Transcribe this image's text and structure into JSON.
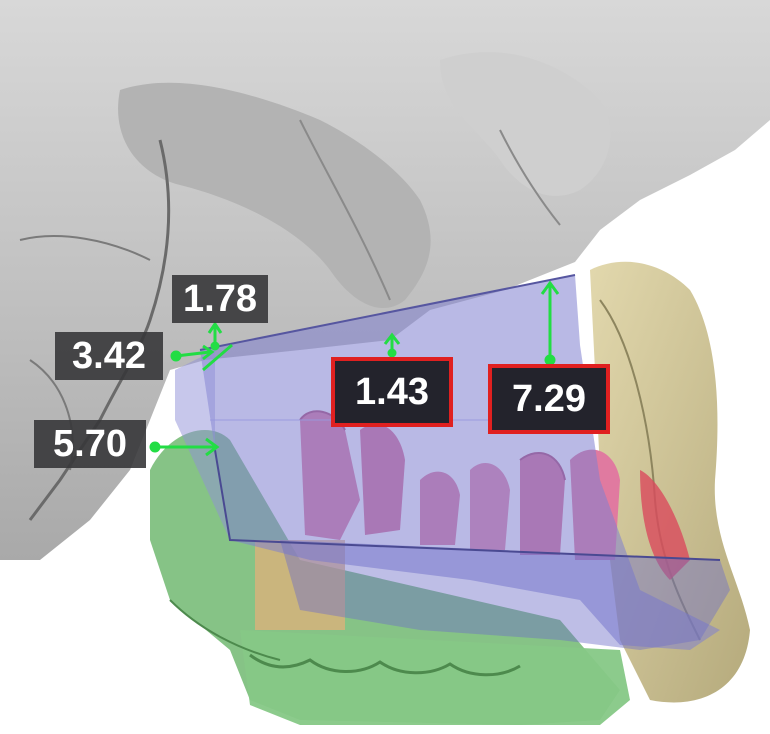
{
  "measurements": [
    {
      "id": "m1",
      "value": "1.78",
      "highlighted": false
    },
    {
      "id": "m2",
      "value": "3.42",
      "highlighted": false
    },
    {
      "id": "m3",
      "value": "5.70",
      "highlighted": false
    },
    {
      "id": "m4",
      "value": "1.43",
      "highlighted": true
    },
    {
      "id": "m5",
      "value": "7.29",
      "highlighted": true
    }
  ],
  "colors": {
    "skull": "#c9c9c9",
    "maxilla_segment": "#7f7fd0",
    "teeth": "#e07aa0",
    "mandible_cast": "#7fc07f",
    "soft_tissue": "#d6cba0",
    "arrow": "#22dd44",
    "highlight_border": "#e02020"
  }
}
